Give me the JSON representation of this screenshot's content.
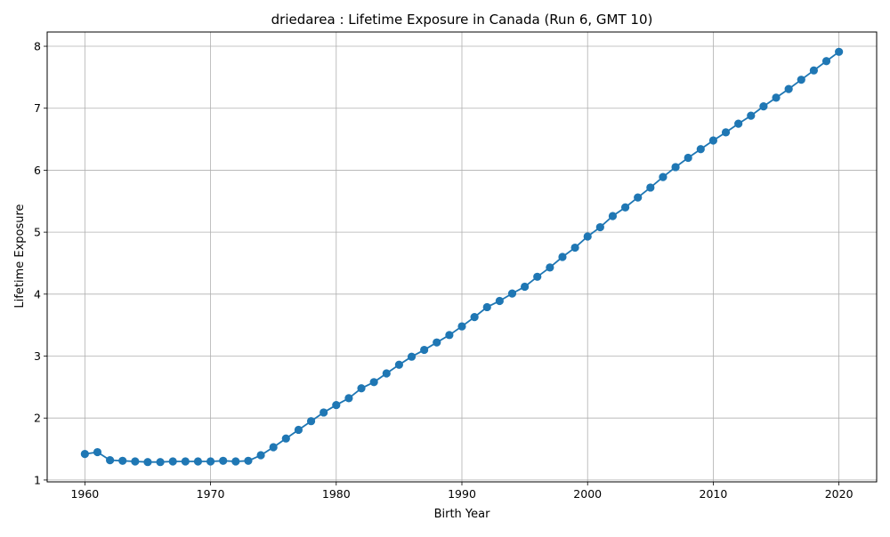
{
  "chart_data": {
    "type": "line",
    "title": "driedarea : Lifetime Exposure in Canada (Run 6, GMT 10)",
    "xlabel": "Birth Year",
    "ylabel": "Lifetime Exposure",
    "xlim": [
      1957,
      2023
    ],
    "ylim": [
      0.97,
      8.23
    ],
    "xticks": [
      1960,
      1970,
      1980,
      1990,
      2000,
      2010,
      2020
    ],
    "yticks": [
      1,
      2,
      3,
      4,
      5,
      6,
      7,
      8
    ],
    "grid": true,
    "color": "#1f77b4",
    "marker": "circle",
    "series": [
      {
        "x": [
          1960,
          1961,
          1962,
          1963,
          1964,
          1965,
          1966,
          1967,
          1968,
          1969,
          1970,
          1971,
          1972,
          1973,
          1974,
          1975,
          1976,
          1977,
          1978,
          1979,
          1980,
          1981,
          1982,
          1983,
          1984,
          1985,
          1986,
          1987,
          1988,
          1989,
          1990,
          1991,
          1992,
          1993,
          1994,
          1995,
          1996,
          1997,
          1998,
          1999,
          2000,
          2001,
          2002,
          2003,
          2004,
          2005,
          2006,
          2007,
          2008,
          2009,
          2010,
          2011,
          2012,
          2013,
          2014,
          2015,
          2016,
          2017,
          2018,
          2019,
          2020
        ],
        "values": [
          1.42,
          1.45,
          1.32,
          1.31,
          1.3,
          1.29,
          1.29,
          1.3,
          1.3,
          1.3,
          1.3,
          1.31,
          1.3,
          1.31,
          1.4,
          1.53,
          1.67,
          1.81,
          1.95,
          2.09,
          2.21,
          2.32,
          2.48,
          2.58,
          2.72,
          2.86,
          2.99,
          3.1,
          3.22,
          3.34,
          3.48,
          3.63,
          3.79,
          3.89,
          4.01,
          4.12,
          4.28,
          4.43,
          4.6,
          4.75,
          4.93,
          5.08,
          5.26,
          5.4,
          5.56,
          5.72,
          5.89,
          6.05,
          6.2,
          6.34,
          6.48,
          6.61,
          6.75,
          6.88,
          7.03,
          7.17,
          7.31,
          7.46,
          7.61,
          7.76,
          7.91
        ]
      }
    ]
  }
}
